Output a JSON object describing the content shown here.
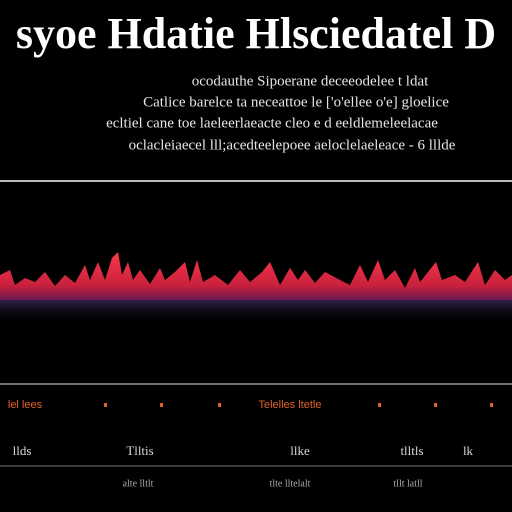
{
  "header": {
    "title": "syoe Hdatie Hlsciedatel D"
  },
  "paragraph": {
    "lines": [
      "ocodauthe  Sipoerane deceeodelee t ldat",
      "Catlice barelce ta neceattoe le ['o'ellee o'e] gloelice",
      "ecltiel cane toe laeleerlaeacte cleo e d eeldlemeleelacae",
      "oclacleiaecel lll;acedteelepoee aeloclelaeleace - 6 lllde"
    ]
  },
  "axis_labels": {
    "orange": [
      "lel lees",
      "Telelles ltetle"
    ]
  },
  "bottom_labels": [
    "llds",
    "Tlltis",
    "llke",
    "tlltls",
    "lk",
    "alte lltlt",
    "tlte lltelalt",
    "tllt latll"
  ]
}
